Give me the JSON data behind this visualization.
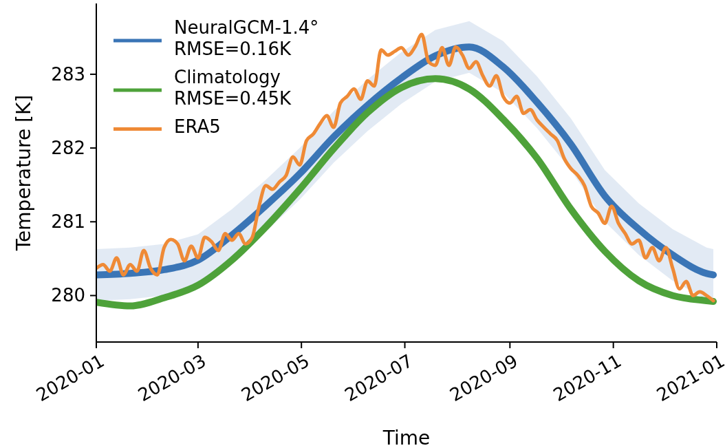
{
  "chart_data": {
    "type": "line",
    "xlabel": "Time",
    "ylabel": "Temperature [K]",
    "legend": "top left",
    "xlim": [
      "2020-01-01",
      "2021-01-01"
    ],
    "xticks": [
      "2020-01",
      "2020-03",
      "2020-05",
      "2020-07",
      "2020-09",
      "2020-11",
      "2021-01"
    ],
    "ylim": [
      279.37,
      283.96
    ],
    "yticks": [
      280,
      281,
      282,
      283
    ],
    "grid": false,
    "marker": "none",
    "line_style": "solid",
    "series": [
      {
        "name": "NeuralGCM-1.4°\nRMSE=0.16K",
        "color": "#3a75b6",
        "x": [
          "2020-01-01",
          "2020-01-21",
          "2020-02-10",
          "2020-03-01",
          "2020-03-21",
          "2020-04-10",
          "2020-04-30",
          "2020-05-20",
          "2020-06-09",
          "2020-06-29",
          "2020-07-19",
          "2020-08-08",
          "2020-08-28",
          "2020-09-17",
          "2020-10-07",
          "2020-10-27",
          "2020-11-16",
          "2020-12-06",
          "2020-12-26",
          "2020-12-30"
        ],
        "values": [
          280.28,
          280.3,
          280.35,
          280.48,
          280.82,
          281.22,
          281.65,
          282.15,
          282.58,
          282.95,
          283.25,
          283.37,
          283.1,
          282.62,
          282.05,
          281.35,
          280.9,
          280.55,
          280.3,
          280.28
        ],
        "upper": [
          280.63,
          280.65,
          280.7,
          280.83,
          281.17,
          281.57,
          282.0,
          282.5,
          282.93,
          283.3,
          283.6,
          283.72,
          283.45,
          282.97,
          282.4,
          281.7,
          281.25,
          280.9,
          280.65,
          280.63
        ],
        "lower": [
          279.93,
          279.95,
          280.0,
          280.13,
          280.47,
          280.87,
          281.3,
          281.8,
          282.23,
          282.6,
          282.9,
          283.02,
          282.75,
          282.27,
          281.7,
          281.0,
          280.55,
          280.2,
          279.95,
          279.93
        ]
      },
      {
        "name": "Climatology\nRMSE=0.45K",
        "color": "#4ea23a",
        "x": [
          "2020-01-01",
          "2020-01-21",
          "2020-02-10",
          "2020-03-01",
          "2020-03-21",
          "2020-04-10",
          "2020-04-30",
          "2020-05-20",
          "2020-06-09",
          "2020-06-29",
          "2020-07-19",
          "2020-08-08",
          "2020-08-28",
          "2020-09-17",
          "2020-10-07",
          "2020-10-27",
          "2020-11-16",
          "2020-12-06",
          "2020-12-26",
          "2020-12-30"
        ],
        "values": [
          279.91,
          279.86,
          279.97,
          280.14,
          280.48,
          280.93,
          281.44,
          281.99,
          282.48,
          282.82,
          282.94,
          282.8,
          282.39,
          281.86,
          281.17,
          280.6,
          280.2,
          280.0,
          279.93,
          279.92
        ]
      },
      {
        "name": "ERA5",
        "color": "#ef8a36",
        "x": [
          "2020-01-01",
          "2020-01-05",
          "2020-01-09",
          "2020-01-13",
          "2020-01-17",
          "2020-01-21",
          "2020-01-25",
          "2020-01-29",
          "2020-02-02",
          "2020-02-06",
          "2020-02-10",
          "2020-02-14",
          "2020-02-18",
          "2020-02-22",
          "2020-02-26",
          "2020-03-01",
          "2020-03-05",
          "2020-03-09",
          "2020-03-13",
          "2020-03-17",
          "2020-03-21",
          "2020-03-25",
          "2020-03-29",
          "2020-04-02",
          "2020-04-06",
          "2020-04-10",
          "2020-04-14",
          "2020-04-18",
          "2020-04-22",
          "2020-04-26",
          "2020-04-30",
          "2020-05-04",
          "2020-05-08",
          "2020-05-12",
          "2020-05-16",
          "2020-05-20",
          "2020-05-24",
          "2020-05-28",
          "2020-06-01",
          "2020-06-05",
          "2020-06-09",
          "2020-06-13",
          "2020-06-17",
          "2020-06-21",
          "2020-06-25",
          "2020-06-29",
          "2020-07-03",
          "2020-07-07",
          "2020-07-11",
          "2020-07-15",
          "2020-07-19",
          "2020-07-23",
          "2020-07-27",
          "2020-07-31",
          "2020-08-04",
          "2020-08-08",
          "2020-08-12",
          "2020-08-16",
          "2020-08-20",
          "2020-08-24",
          "2020-08-28",
          "2020-09-01",
          "2020-09-05",
          "2020-09-09",
          "2020-09-13",
          "2020-09-17",
          "2020-09-21",
          "2020-09-25",
          "2020-09-29",
          "2020-10-03",
          "2020-10-07",
          "2020-10-11",
          "2020-10-15",
          "2020-10-19",
          "2020-10-23",
          "2020-10-27",
          "2020-10-31",
          "2020-11-04",
          "2020-11-08",
          "2020-11-12",
          "2020-11-16",
          "2020-11-20",
          "2020-11-24",
          "2020-11-28",
          "2020-12-02",
          "2020-12-06",
          "2020-12-10",
          "2020-12-14",
          "2020-12-18",
          "2020-12-22",
          "2020-12-26",
          "2020-12-30"
        ],
        "values": [
          280.37,
          280.42,
          280.33,
          280.51,
          280.28,
          280.42,
          280.33,
          280.61,
          280.37,
          280.28,
          280.65,
          280.76,
          280.7,
          280.47,
          280.67,
          280.51,
          280.79,
          280.73,
          280.61,
          280.84,
          280.75,
          280.84,
          280.7,
          280.79,
          281.21,
          281.49,
          281.44,
          281.54,
          281.63,
          281.88,
          281.77,
          282.1,
          282.19,
          282.33,
          282.44,
          282.28,
          282.61,
          282.7,
          282.8,
          282.66,
          282.91,
          282.84,
          283.33,
          283.26,
          283.31,
          283.36,
          283.26,
          283.37,
          283.54,
          283.17,
          283.12,
          283.36,
          283.12,
          283.37,
          283.26,
          283.08,
          283.17,
          282.98,
          282.84,
          282.98,
          282.7,
          282.61,
          282.7,
          282.47,
          282.52,
          282.38,
          282.28,
          282.19,
          282.1,
          281.86,
          281.72,
          281.63,
          281.49,
          281.21,
          281.12,
          280.98,
          281.21,
          280.98,
          280.84,
          280.7,
          280.75,
          280.51,
          280.65,
          280.47,
          280.65,
          280.37,
          280.09,
          280.19,
          280.0,
          280.05,
          280.0,
          279.93
        ]
      }
    ]
  }
}
